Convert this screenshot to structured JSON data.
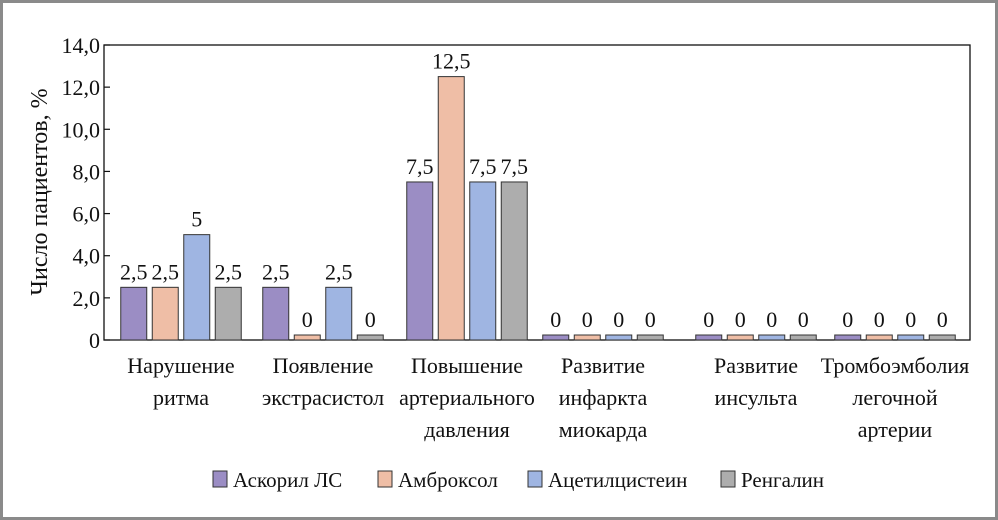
{
  "chart_data": {
    "type": "bar",
    "ylabel": "Число пациентов, %",
    "ylim": [
      0,
      14
    ],
    "yticks": [
      "0",
      "2,0",
      "4,0",
      "6,0",
      "8,0",
      "10,0",
      "12,0",
      "14,0"
    ],
    "grid": false,
    "legend_position": "bottom",
    "categories": [
      [
        "Нарушение",
        "ритма"
      ],
      [
        "Появление",
        "экстрасистол"
      ],
      [
        "Повышение",
        "артериального",
        "давления"
      ],
      [
        "Развитие",
        "инфаркта",
        "миокарда"
      ],
      [
        "Развитие",
        "инсульта"
      ],
      [
        "Тромбоэмболия",
        "легочной",
        "артерии"
      ]
    ],
    "series": [
      {
        "name": "Аскорил ЛС",
        "color": "#9b8dc4",
        "values": [
          2.5,
          2.5,
          7.5,
          0,
          0,
          0
        ],
        "labels": [
          "2,5",
          "2,5",
          "7,5",
          "0",
          "0",
          "0"
        ]
      },
      {
        "name": "Амброксол",
        "color": "#efbea6",
        "values": [
          2.5,
          0,
          12.5,
          0,
          0,
          0
        ],
        "labels": [
          "2,5",
          "0",
          "12,5",
          "0",
          "0",
          "0"
        ]
      },
      {
        "name": "Ацетилцистеин",
        "color": "#9fb5e2",
        "values": [
          5,
          2.5,
          7.5,
          0,
          0,
          0
        ],
        "labels": [
          "5",
          "2,5",
          "7,5",
          "0",
          "0",
          "0"
        ]
      },
      {
        "name": "Ренгалин",
        "color": "#adadad",
        "values": [
          2.5,
          0,
          7.5,
          0,
          0,
          0
        ],
        "labels": [
          "2,5",
          "0",
          "7,5",
          "0",
          "0",
          "0"
        ]
      }
    ]
  }
}
